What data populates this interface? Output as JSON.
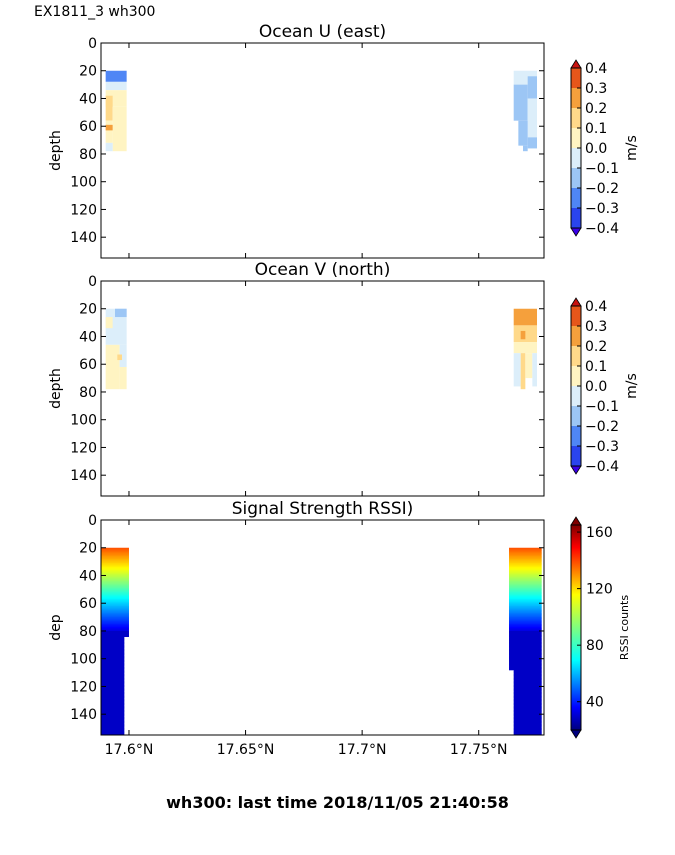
{
  "figure": {
    "title": "EX1811_3 wh300",
    "footer": "wh300: last time 2018/11/05 21:40:58"
  },
  "chart_data": [
    {
      "type": "heatmap",
      "title": "Ocean U (east)",
      "xlabel": "",
      "ylabel": "depth",
      "x_ticks": [],
      "y_ticks": [
        "0",
        "20",
        "40",
        "60",
        "80",
        "100",
        "120",
        "140"
      ],
      "xlim": [
        17.588,
        17.778
      ],
      "ylim": [
        155,
        0
      ],
      "colorbar": {
        "label": "m/s",
        "ticks": [
          "0.4",
          "0.3",
          "0.2",
          "0.1",
          "0.0",
          "−0.1",
          "−0.2",
          "−0.3",
          "−0.4"
        ],
        "range": [
          -0.4,
          0.4
        ]
      },
      "regions": [
        {
          "x0": 17.59,
          "x1": 17.599,
          "y0": 20,
          "y1": 28,
          "v": -0.22
        },
        {
          "x0": 17.59,
          "x1": 17.599,
          "y0": 28,
          "y1": 34,
          "v": -0.05
        },
        {
          "x0": 17.59,
          "x1": 17.599,
          "y0": 34,
          "y1": 46,
          "v": 0.05
        },
        {
          "x0": 17.59,
          "x1": 17.593,
          "y0": 38,
          "y1": 56,
          "v": 0.17
        },
        {
          "x0": 17.593,
          "x1": 17.599,
          "y0": 46,
          "y1": 78,
          "v": 0.05
        },
        {
          "x0": 17.59,
          "x1": 17.593,
          "y0": 56,
          "y1": 72,
          "v": 0.05
        },
        {
          "x0": 17.59,
          "x1": 17.593,
          "y0": 59,
          "y1": 63,
          "v": 0.25
        },
        {
          "x0": 17.59,
          "x1": 17.593,
          "y0": 72,
          "y1": 78,
          "v": -0.05
        },
        {
          "x0": 17.765,
          "x1": 17.775,
          "y0": 20,
          "y1": 30,
          "v": -0.05
        },
        {
          "x0": 17.765,
          "x1": 17.771,
          "y0": 30,
          "y1": 56,
          "v": -0.12
        },
        {
          "x0": 17.771,
          "x1": 17.775,
          "y0": 24,
          "y1": 40,
          "v": -0.12
        },
        {
          "x0": 17.771,
          "x1": 17.775,
          "y0": 40,
          "y1": 68,
          "v": -0.05
        },
        {
          "x0": 17.767,
          "x1": 17.771,
          "y0": 56,
          "y1": 74,
          "v": -0.12
        },
        {
          "x0": 17.771,
          "x1": 17.775,
          "y0": 68,
          "y1": 76,
          "v": -0.12
        },
        {
          "x0": 17.769,
          "x1": 17.771,
          "y0": 74,
          "y1": 78,
          "v": -0.12
        }
      ]
    },
    {
      "type": "heatmap",
      "title": "Ocean V (north)",
      "xlabel": "",
      "ylabel": "depth",
      "x_ticks": [],
      "y_ticks": [
        "0",
        "20",
        "40",
        "60",
        "80",
        "100",
        "120",
        "140"
      ],
      "xlim": [
        17.588,
        17.778
      ],
      "ylim": [
        155,
        0
      ],
      "colorbar": {
        "label": "m/s",
        "ticks": [
          "0.4",
          "0.3",
          "0.2",
          "0.1",
          "0.0",
          "−0.1",
          "−0.2",
          "−0.3",
          "−0.4"
        ],
        "range": [
          -0.4,
          0.4
        ]
      },
      "regions": [
        {
          "x0": 17.59,
          "x1": 17.599,
          "y0": 20,
          "y1": 46,
          "v": -0.05
        },
        {
          "x0": 17.594,
          "x1": 17.599,
          "y0": 20,
          "y1": 26,
          "v": -0.12
        },
        {
          "x0": 17.59,
          "x1": 17.593,
          "y0": 26,
          "y1": 34,
          "v": 0.05
        },
        {
          "x0": 17.59,
          "x1": 17.596,
          "y0": 46,
          "y1": 78,
          "v": 0.05
        },
        {
          "x0": 17.596,
          "x1": 17.599,
          "y0": 46,
          "y1": 62,
          "v": -0.05
        },
        {
          "x0": 17.596,
          "x1": 17.599,
          "y0": 62,
          "y1": 78,
          "v": 0.05
        },
        {
          "x0": 17.595,
          "x1": 17.597,
          "y0": 53,
          "y1": 57,
          "v": 0.15
        },
        {
          "x0": 17.765,
          "x1": 17.775,
          "y0": 20,
          "y1": 32,
          "v": 0.27
        },
        {
          "x0": 17.765,
          "x1": 17.775,
          "y0": 32,
          "y1": 44,
          "v": 0.15
        },
        {
          "x0": 17.765,
          "x1": 17.775,
          "y0": 44,
          "y1": 52,
          "v": 0.05
        },
        {
          "x0": 17.765,
          "x1": 17.768,
          "y0": 52,
          "y1": 76,
          "v": -0.05
        },
        {
          "x0": 17.768,
          "x1": 17.77,
          "y0": 52,
          "y1": 78,
          "v": 0.15
        },
        {
          "x0": 17.77,
          "x1": 17.773,
          "y0": 52,
          "y1": 70,
          "v": 0.05
        },
        {
          "x0": 17.773,
          "x1": 17.775,
          "y0": 52,
          "y1": 76,
          "v": -0.05
        },
        {
          "x0": 17.768,
          "x1": 17.77,
          "y0": 36,
          "y1": 42,
          "v": 0.27
        }
      ]
    },
    {
      "type": "heatmap",
      "title": "Signal Strength RSSI)",
      "xlabel": "",
      "ylabel": "dep",
      "x_ticks": [
        "17.6°N",
        "17.65°N",
        "17.7°N",
        "17.75°N"
      ],
      "x_tick_values": [
        17.6,
        17.65,
        17.7,
        17.75
      ],
      "y_ticks": [
        "0",
        "20",
        "40",
        "60",
        "80",
        "100",
        "120",
        "140"
      ],
      "xlim": [
        17.588,
        17.778
      ],
      "ylim": [
        155,
        0
      ],
      "colorbar": {
        "label": "RSSI counts",
        "ticks": [
          "160",
          "120",
          "80",
          "40"
        ],
        "tick_values": [
          160,
          120,
          80,
          40
        ],
        "range": [
          20,
          165
        ]
      },
      "columns": [
        {
          "x0": 17.588,
          "x1": 17.6,
          "top": 20,
          "bottom": 84
        },
        {
          "x0": 17.588,
          "x1": 17.598,
          "top": 84,
          "bottom": 155
        },
        {
          "x0": 17.763,
          "x1": 17.777,
          "top": 20,
          "bottom": 108
        },
        {
          "x0": 17.765,
          "x1": 17.777,
          "top": 108,
          "bottom": 155
        }
      ]
    }
  ]
}
